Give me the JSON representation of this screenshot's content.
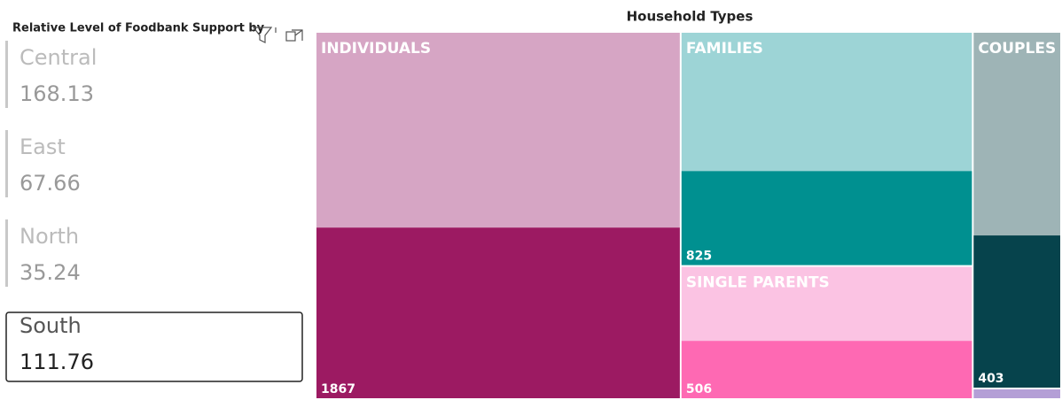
{
  "card": {
    "title": "Relative Level of Foodbank Support by",
    "items": [
      {
        "name": "Central",
        "value": "168.13"
      },
      {
        "name": "East",
        "value": "67.66"
      },
      {
        "name": "North",
        "value": "35.24"
      },
      {
        "name": "South",
        "value": "111.76"
      }
    ],
    "selected": 3
  },
  "chart_data": {
    "type": "treemap",
    "title": "Household Types",
    "categories": [
      "INDIVIDUALS",
      "FAMILIES",
      "SINGLE PARENTS",
      "COUPLES",
      null
    ],
    "values": [
      4000,
      2040,
      1160,
      940,
      28
    ],
    "highlight_values": [
      1867,
      825,
      506,
      403,
      null
    ],
    "colors": [
      "#d6a5c4",
      "#9dd4d6",
      "#fbc3e3",
      "#9eb4b6",
      "#b49fd6"
    ],
    "highlight_colors": [
      "#9c1a62",
      "#009090",
      "#fe69b3",
      "#06434c",
      "#9a7fcf"
    ]
  }
}
